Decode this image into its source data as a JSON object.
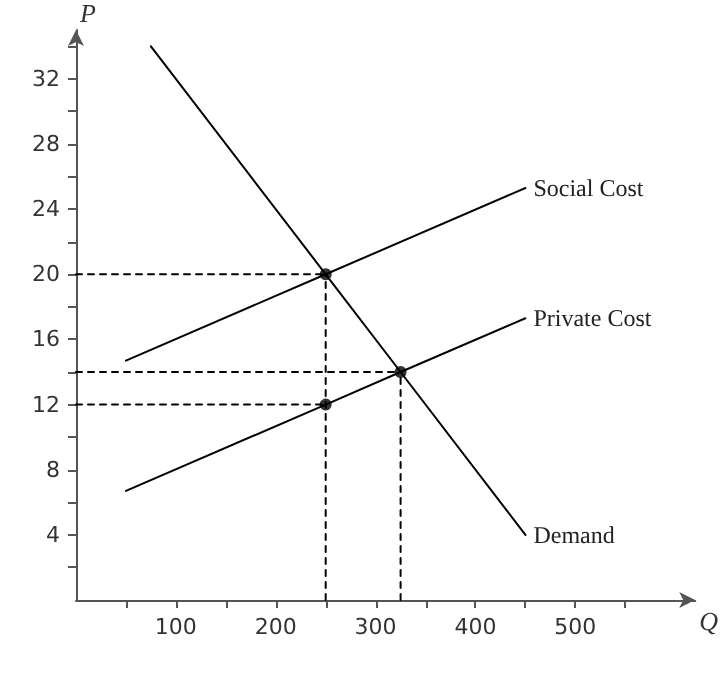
{
  "chart_data": {
    "type": "line",
    "xlabel": "Q",
    "ylabel": "P",
    "xlim": [
      0,
      620
    ],
    "ylim": [
      0,
      35
    ],
    "xticks": [
      {
        "value": 50,
        "label": null
      },
      100,
      {
        "value": 150,
        "label": null
      },
      200,
      {
        "value": 250,
        "label": null
      },
      300,
      {
        "value": 350,
        "label": null
      },
      400,
      {
        "value": 450,
        "label": null
      },
      500,
      {
        "value": 550,
        "label": null
      }
    ],
    "yticks": [
      {
        "value": 2,
        "label": null
      },
      4,
      {
        "value": 6,
        "label": null
      },
      8,
      {
        "value": 10,
        "label": null
      },
      12,
      {
        "value": 14,
        "label": null
      },
      16,
      {
        "value": 18,
        "label": null
      },
      20,
      {
        "value": 22,
        "label": null
      },
      24,
      {
        "value": 26,
        "label": null
      },
      28,
      {
        "value": 30,
        "label": null
      },
      32,
      {
        "value": 34,
        "label": null
      }
    ],
    "grid": false,
    "legend": false,
    "marker": "none",
    "line_style": "solid",
    "series": [
      {
        "name": "Social Cost",
        "color": "#000000",
        "x": [
          50,
          250,
          450
        ],
        "values": [
          14.7,
          20,
          25.3
        ]
      },
      {
        "name": "Private Cost",
        "color": "#000000",
        "x": [
          50,
          250,
          325,
          450
        ],
        "values": [
          6.7,
          12,
          14,
          17.3
        ]
      },
      {
        "name": "Demand",
        "color": "#000000",
        "x": [
          75,
          250,
          325,
          450
        ],
        "values": [
          34,
          20,
          14,
          4
        ]
      },
      {
        "color": "#000000",
        "line_style": "dashed",
        "x": [
          0,
          250
        ],
        "values": [
          20,
          20
        ]
      },
      {
        "color": "#000000",
        "line_style": "dashed",
        "x": [
          0,
          325
        ],
        "values": [
          14,
          14
        ]
      },
      {
        "color": "#000000",
        "line_style": "dashed",
        "x": [
          0,
          250
        ],
        "values": [
          12,
          12
        ]
      },
      {
        "color": "#000000",
        "line_style": "dashed",
        "x": [
          250,
          250
        ],
        "values": [
          0,
          20
        ]
      },
      {
        "color": "#000000",
        "line_style": "dashed",
        "x": [
          325,
          325
        ],
        "values": [
          0,
          14
        ]
      },
      {
        "type": "scatter",
        "marker": "circle",
        "color": "#000000",
        "x": [
          250,
          250,
          325
        ],
        "values": [
          20,
          12,
          14
        ]
      }
    ]
  }
}
